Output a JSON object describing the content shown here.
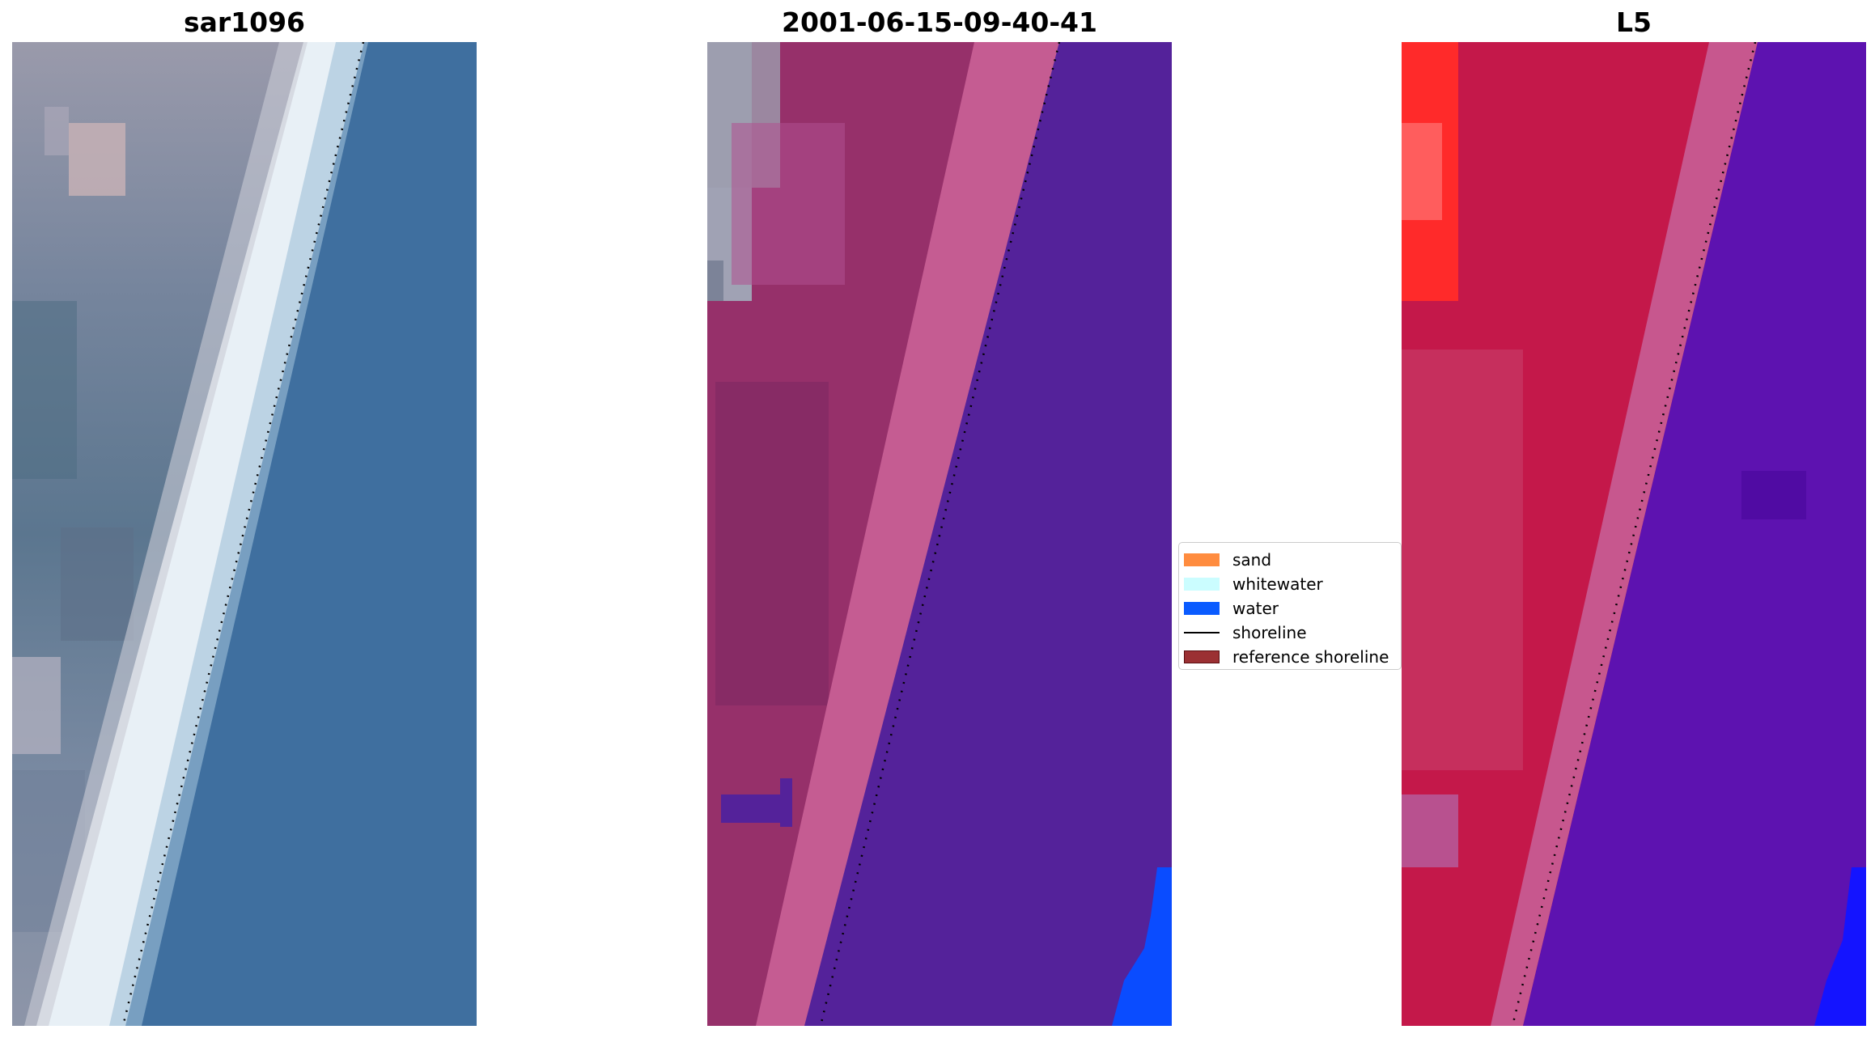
{
  "figure": {
    "panels": [
      {
        "title": "sar1096",
        "kind": "rgb"
      },
      {
        "title": "2001-06-15-09-40-41",
        "kind": "classified"
      },
      {
        "title": "L5",
        "kind": "index"
      }
    ]
  },
  "legend": {
    "items": [
      {
        "label": "sand",
        "type": "patch",
        "color": "#ff8c3f"
      },
      {
        "label": "whitewater",
        "type": "patch",
        "color": "#cbfdff"
      },
      {
        "label": "water",
        "type": "patch",
        "color": "#0a5bff"
      },
      {
        "label": "shoreline",
        "type": "line",
        "color": "#000000"
      },
      {
        "label": "reference shoreline",
        "type": "patch",
        "color": "#9b3033",
        "edge": "#5a0f12"
      }
    ]
  },
  "colors": {
    "rgb_sea": "#3f6f9f",
    "rgb_beach": "#e8f0f6",
    "rgb_land": "#8c90a4",
    "class_land": "#a0336a",
    "class_beach": "#c55c92",
    "class_water": "#54229a",
    "class_water_flag": "#0a4cff",
    "index_land": "#c4184a",
    "index_beach": "#c7578e",
    "index_water": "#5d12b0",
    "index_hot": "#ff2020",
    "index_blue": "#1414ff"
  }
}
